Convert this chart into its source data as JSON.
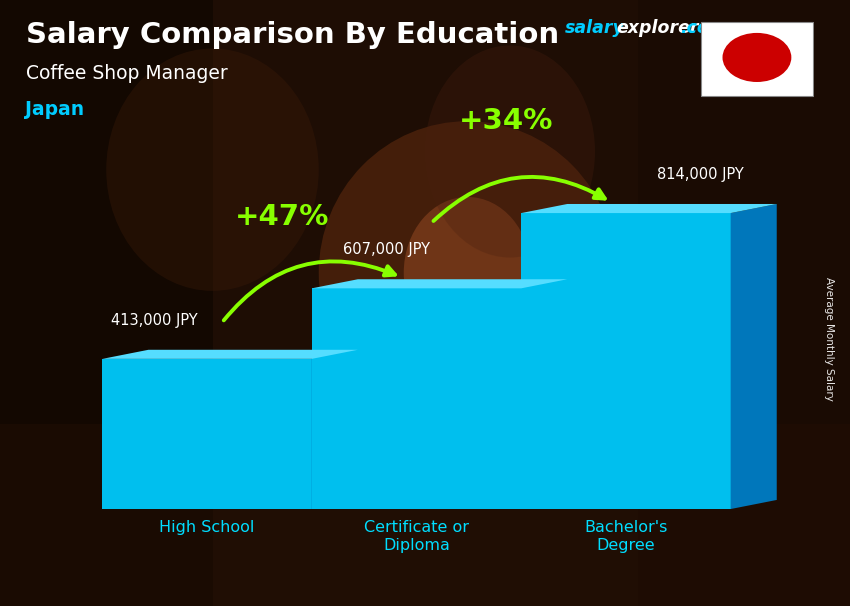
{
  "title": "Salary Comparison By Education",
  "subtitle": "Coffee Shop Manager",
  "country": "Japan",
  "ylabel": "Average Monthly Salary",
  "categories": [
    "High School",
    "Certificate or\nDiploma",
    "Bachelor's\nDegree"
  ],
  "values": [
    413000,
    607000,
    814000
  ],
  "labels": [
    "413,000 JPY",
    "607,000 JPY",
    "814,000 JPY"
  ],
  "pct_labels": [
    "+47%",
    "+34%"
  ],
  "bar_color_front": "#00bfee",
  "bar_color_top": "#55ddff",
  "bar_color_side": "#0077bb",
  "title_color": "#ffffff",
  "subtitle_color": "#ffffff",
  "country_color": "#00ccff",
  "watermark_salary_color": "#00ccff",
  "watermark_explorer_color": "#ffffff",
  "label_color": "#ffffff",
  "pct_color": "#88ff00",
  "arrow_color": "#88ff00",
  "xticklabel_color": "#00ddff",
  "bg_color": "#2a1005",
  "ylim": [
    0,
    1000000
  ],
  "bar_width": 0.28,
  "x_positions": [
    0.22,
    0.5,
    0.78
  ]
}
